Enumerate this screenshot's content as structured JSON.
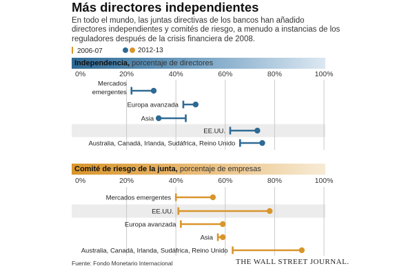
{
  "title": "Más directores independientes",
  "subtitle": "En todo el mundo, las juntas directivas de los bancos han añadido directores independientes y comités de riesgo, a menudo a instancias de los reguladores después de la crisis financiera de 2008.",
  "legend": {
    "series_a": "2006-07",
    "series_b": "2012-13"
  },
  "source": "Fuente: Fondo Monetario Internacional",
  "brand": "THE WALL STREET JOURNAL.",
  "colors": {
    "blue": "#2e6a95",
    "orange": "#d9952b",
    "band": "#ececec",
    "grid": "#c9c9c9"
  },
  "chart_data": [
    {
      "type": "dumbbell",
      "title_bold": "Independencia,",
      "title_rest": " porcentaje de directores",
      "x_ticks": [
        "0%",
        "20%",
        "40%",
        "60%",
        "80%",
        "100%"
      ],
      "xlim": [
        0,
        100
      ],
      "series": [
        {
          "name": "2006-07",
          "values": [
            22,
            43,
            44,
            62,
            66
          ]
        },
        {
          "name": "2012-13",
          "values": [
            31,
            48,
            33,
            73,
            75
          ]
        }
      ],
      "categories": [
        "Mercados\nemergentes",
        "Europa avanzada",
        "Asia",
        "EE.UU.",
        "Australia, Canadá, Irlanda, Sudáfrica, Reino Unido"
      ]
    },
    {
      "type": "dumbbell",
      "title_bold": "Comité de riesgo de la junta,",
      "title_rest": " porcentaje de empresas",
      "x_ticks": [
        "0%",
        "20%",
        "40%",
        "60%",
        "80%",
        "100%"
      ],
      "xlim": [
        0,
        100
      ],
      "series": [
        {
          "name": "2006-07",
          "values": [
            40,
            41,
            42,
            57,
            63
          ]
        },
        {
          "name": "2012-13",
          "values": [
            55,
            78,
            59,
            59,
            91
          ]
        }
      ],
      "categories": [
        "Mercados emergentes",
        "EE.UU.",
        "Europa avanzada",
        "Asia",
        "Australia, Canadá, Irlanda, Sudáfrica, Reino Unido"
      ]
    }
  ]
}
